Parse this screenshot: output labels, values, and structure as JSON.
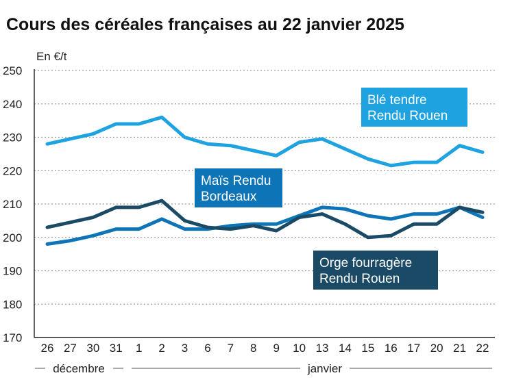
{
  "chart_data": {
    "type": "line",
    "title": "Cours des céréales françaises au 22 janvier 2025",
    "ylabel": "En €/t",
    "ylim": [
      170,
      250
    ],
    "yticks": [
      170,
      180,
      190,
      200,
      210,
      220,
      230,
      240,
      250
    ],
    "grid": true,
    "categories": [
      "26",
      "27",
      "30",
      "31",
      "1",
      "2",
      "3",
      "6",
      "7",
      "8",
      "9",
      "10",
      "13",
      "14",
      "15",
      "16",
      "17",
      "20",
      "21",
      "22"
    ],
    "months": [
      {
        "label": "décembre",
        "from": 0,
        "to": 3
      },
      {
        "label": "janvier",
        "from": 4,
        "to": 19
      }
    ],
    "series": [
      {
        "name": "Blé tendre Rendu Rouen",
        "label_lines": [
          "Blé tendre",
          "Rendu Rouen"
        ],
        "color": "#1ea2e0",
        "values": [
          228,
          229.5,
          231,
          234,
          234,
          236,
          230,
          228,
          227.5,
          226,
          224.5,
          228.5,
          229.5,
          226.5,
          223.5,
          221.5,
          222.5,
          222.5,
          227.5,
          225.5
        ]
      },
      {
        "name": "Maïs Rendu Bordeaux",
        "label_lines": [
          "Maïs Rendu",
          "Bordeaux"
        ],
        "color": "#0e74b8",
        "values": [
          198,
          199,
          200.5,
          202.5,
          202.5,
          205.5,
          202.5,
          202.5,
          203.5,
          204,
          204,
          206.5,
          209,
          208.5,
          206.5,
          205.5,
          207,
          207,
          209,
          206
        ]
      },
      {
        "name": "Orge fourragère Rendu Rouen",
        "label_lines": [
          "Orge fourragère",
          "Rendu Rouen"
        ],
        "color": "#1b4a66",
        "values": [
          203,
          204.5,
          206,
          209,
          209,
          211,
          205,
          203,
          202.5,
          203.5,
          202,
          206,
          207,
          204,
          200,
          200.5,
          204,
          204,
          209,
          207.5
        ]
      }
    ]
  }
}
